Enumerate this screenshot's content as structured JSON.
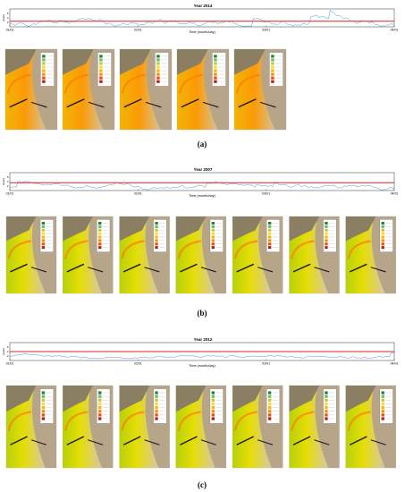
{
  "figure": {
    "panels": [
      {
        "id": "a",
        "caption": "(a)",
        "chart": {
          "title": "Year 2014",
          "ylabel": "Hs(m)",
          "xlabel": "Time (month/day)",
          "yticks": [
            "6",
            "4",
            "2"
          ],
          "xticks": [
            "01/01",
            "02/01",
            "03/01",
            "04/01"
          ],
          "threshold": 2.5,
          "seed": 11,
          "amp": 1.3,
          "maps": 5
        }
      },
      {
        "id": "b",
        "caption": "(b)",
        "chart": {
          "title": "Year 2007",
          "ylabel": "Hs(m)",
          "xlabel": "Time (month/day)",
          "yticks": [
            "6",
            "4",
            "2"
          ],
          "xticks": [
            "01/01",
            "02/01",
            "03/01",
            "04/01"
          ],
          "threshold": 3.5,
          "seed": 23,
          "amp": 1.0,
          "maps": 7
        }
      },
      {
        "id": "c",
        "caption": "(c)",
        "chart": {
          "title": "Year 2012",
          "ylabel": "Hs(m)",
          "xlabel": "Time (month/day)",
          "yticks": [
            "6",
            "4",
            "2"
          ],
          "xticks": [
            "01/01",
            "02/01",
            "03/01",
            "04/01"
          ],
          "threshold": 4.0,
          "seed": 37,
          "amp": 0.6,
          "maps": 7
        }
      }
    ]
  },
  "colors": {
    "series": "#4a90d9",
    "threshold": "#e02020",
    "frame": "#333333"
  }
}
